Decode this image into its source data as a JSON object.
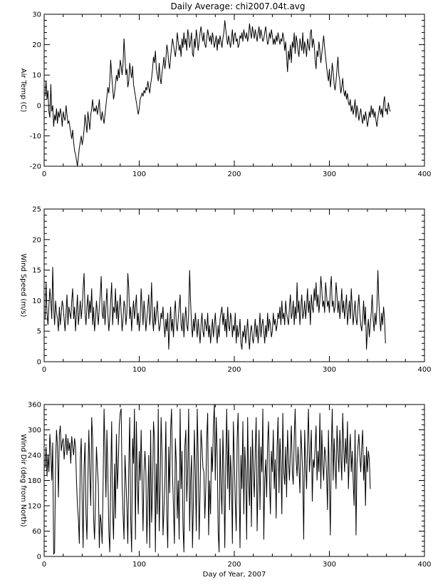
{
  "title": "Daily Average: chi2007.04t.avg",
  "chart_data": [
    {
      "type": "line",
      "name": "air-temp",
      "ylabel": "Air Temp (C)",
      "xlabel": "",
      "xlim": [
        0,
        400
      ],
      "ylim": [
        -20,
        30
      ],
      "xticks": [
        0,
        100,
        200,
        300,
        400
      ],
      "yticks": [
        -20,
        -10,
        0,
        10,
        20,
        30
      ],
      "x_start": 1,
      "y": [
        3,
        8,
        2,
        5,
        -2,
        -4,
        7,
        -2,
        0,
        -7,
        -3,
        -5,
        -1,
        -6,
        -2,
        -4,
        -1,
        -3,
        -7,
        -2,
        -4,
        -5,
        0,
        -3,
        -6,
        -5,
        -7,
        -9,
        -11,
        -8,
        -12,
        -15,
        -16,
        -18,
        -20,
        -17,
        -14,
        -12,
        -10,
        -13,
        -11,
        -8,
        -3,
        -6,
        -9,
        -2,
        -5,
        -8,
        -3,
        -1,
        2,
        -2,
        -1,
        -2,
        0,
        -3,
        -1,
        2,
        -3,
        -5,
        -2,
        -4,
        -6,
        -3,
        0,
        3,
        6,
        4,
        8,
        15,
        10,
        6,
        2,
        4,
        7,
        10,
        8,
        12,
        9,
        15,
        13,
        10,
        14,
        22,
        16,
        10,
        12,
        6,
        8,
        14,
        11,
        9,
        13,
        7,
        5,
        3,
        1,
        -1,
        -3,
        -1,
        2,
        3,
        4,
        3,
        5,
        4,
        6,
        5,
        8,
        6,
        4,
        7,
        9,
        12,
        16,
        14,
        18,
        12,
        10,
        8,
        14,
        9,
        7,
        11,
        13,
        16,
        12,
        15,
        20,
        18,
        14,
        12,
        16,
        19,
        22,
        20,
        18,
        16,
        19,
        24,
        21,
        18,
        20,
        16,
        22,
        19,
        24,
        20,
        22,
        18,
        25,
        23,
        19,
        21,
        24,
        17,
        16,
        22,
        19,
        25,
        22,
        18,
        21,
        24,
        26,
        23,
        21,
        24,
        20,
        19,
        22,
        25,
        23,
        21,
        23,
        20,
        24,
        22,
        19,
        21,
        23,
        18,
        22,
        20,
        23,
        21,
        19,
        22,
        24,
        28,
        25,
        22,
        20,
        23,
        21,
        19,
        22,
        25,
        20,
        23,
        24,
        21,
        22,
        19,
        20,
        23,
        22,
        24,
        21,
        25,
        23,
        22,
        24,
        21,
        23,
        27,
        24,
        22,
        26,
        24,
        22,
        25,
        23,
        21,
        24,
        26,
        22,
        25,
        23,
        21,
        22,
        24,
        26,
        23,
        20,
        21,
        24,
        22,
        25,
        23,
        20,
        22,
        20,
        23,
        21,
        24,
        22,
        20,
        22,
        21,
        24,
        22,
        18,
        21,
        16,
        11,
        18,
        15,
        20,
        14,
        21,
        19,
        24,
        17,
        23,
        21,
        18,
        16,
        22,
        20,
        18,
        24,
        17,
        21,
        19,
        16,
        22,
        20,
        18,
        24,
        25,
        19,
        22,
        20,
        15,
        12,
        18,
        16,
        21,
        18,
        14,
        17,
        20,
        23,
        19,
        16,
        13,
        10,
        8,
        12,
        6,
        9,
        14,
        11,
        7,
        5,
        8,
        12,
        16,
        10,
        8,
        4,
        6,
        9,
        5,
        3,
        5,
        2,
        4,
        1,
        0,
        2,
        -2,
        0,
        -3,
        -1,
        2,
        -4,
        0,
        -2,
        -5,
        -3,
        -1,
        -4,
        -6,
        -3,
        -5,
        -2,
        -4,
        -7,
        -5,
        -2,
        -4,
        0,
        -3,
        -1,
        -4,
        -2,
        -5,
        -7,
        -4,
        -2,
        0,
        -3,
        -1,
        -4,
        1,
        3,
        -2,
        -1,
        -3,
        1,
        -1,
        -2
      ],
      "color": "#000000"
    },
    {
      "type": "line",
      "name": "wind-speed",
      "ylabel": "Wind Speed (m/s)",
      "xlabel": "",
      "xlim": [
        0,
        400
      ],
      "ylim": [
        0,
        25
      ],
      "xticks": [
        0,
        100,
        200,
        300,
        400
      ],
      "yticks": [
        0,
        5,
        10,
        15,
        20,
        25
      ],
      "x_start": 1,
      "y": [
        7,
        13,
        8,
        6,
        9,
        12,
        10,
        7,
        15.5,
        9,
        6,
        10,
        8,
        7,
        5,
        9,
        6,
        8,
        10,
        9,
        7,
        5,
        8,
        11,
        6,
        9,
        8,
        7,
        10,
        12,
        7,
        9,
        5,
        8,
        11,
        6,
        8,
        10,
        7,
        9,
        12,
        14.5,
        8,
        6,
        9,
        11,
        7,
        10,
        8,
        12,
        6,
        9,
        5,
        7,
        10,
        8,
        6,
        9,
        11,
        14,
        8,
        7,
        10,
        6,
        9,
        12,
        8,
        5,
        7,
        10,
        13,
        6,
        9,
        8,
        12,
        7,
        10,
        6,
        9,
        11,
        8,
        5,
        7,
        10,
        9,
        6,
        8,
        14.5,
        12,
        7,
        9,
        5,
        8,
        10,
        7,
        9,
        11,
        6,
        8,
        5,
        7,
        12,
        9,
        6,
        10,
        8,
        5,
        7,
        9,
        11,
        6,
        8,
        13,
        7,
        5,
        9,
        6,
        8,
        10,
        7,
        5,
        6,
        8,
        7,
        9,
        6,
        4,
        7,
        5,
        8,
        2,
        6,
        9,
        5,
        7,
        4,
        8,
        10,
        6,
        5,
        7,
        9,
        11,
        6,
        5,
        8,
        4,
        7,
        9,
        6,
        5,
        8,
        15,
        10,
        6,
        4,
        7,
        5,
        8,
        6,
        4,
        7,
        5,
        3,
        6,
        8,
        5,
        4,
        7,
        6,
        5,
        8,
        4,
        6,
        3,
        5,
        7,
        4,
        6,
        8,
        5,
        3,
        6,
        4,
        7,
        8,
        9,
        6,
        8,
        5,
        7,
        4,
        9,
        6,
        5,
        8,
        7,
        4,
        6,
        5,
        8,
        3,
        6,
        4,
        5,
        7,
        3,
        2,
        5,
        4,
        6,
        3,
        5,
        7,
        4,
        2,
        5,
        6,
        4,
        3,
        5,
        7,
        4,
        6,
        3,
        5,
        8,
        4,
        6,
        7,
        5,
        3,
        6,
        4,
        8,
        5,
        7,
        6,
        4,
        5,
        8,
        6,
        7,
        5,
        6,
        8,
        7,
        9,
        6,
        10,
        7,
        8,
        6,
        10,
        8,
        7,
        6,
        9,
        11,
        7,
        8,
        10,
        6,
        9,
        7,
        13,
        8,
        10,
        6,
        9,
        11,
        7,
        8,
        10,
        7,
        9,
        12,
        8,
        10,
        6,
        11,
        9,
        8,
        12,
        10,
        13,
        9,
        11,
        8,
        10,
        14,
        12,
        9,
        10,
        8,
        13,
        11,
        9,
        10,
        8,
        12,
        14,
        9,
        10,
        8,
        9,
        13,
        11,
        8,
        10,
        7,
        9,
        12,
        8,
        10,
        7,
        9,
        11,
        6,
        8,
        10,
        7,
        12,
        9,
        6,
        8,
        10,
        7,
        6,
        9,
        11,
        8,
        6,
        5,
        7,
        10,
        6,
        9,
        2,
        5,
        7,
        4,
        6,
        8,
        11,
        7,
        5,
        8,
        6,
        9,
        15,
        10,
        7,
        5,
        8,
        6,
        9,
        7,
        3
      ],
      "color": "#000000"
    },
    {
      "type": "line",
      "name": "wind-dir",
      "ylabel": "Wind Dir (deg from North)",
      "xlabel": "Day of Year, 2007",
      "xlim": [
        0,
        400
      ],
      "ylim": [
        0,
        360
      ],
      "xticks": [
        0,
        100,
        200,
        300,
        400
      ],
      "yticks": [
        0,
        60,
        120,
        180,
        240,
        300,
        360
      ],
      "x_start": 1,
      "y": [
        210,
        260,
        190,
        240,
        200,
        290,
        250,
        180,
        270,
        5,
        10,
        220,
        300,
        260,
        140,
        290,
        310,
        250,
        270,
        280,
        230,
        260,
        290,
        240,
        280,
        250,
        270,
        220,
        285,
        260,
        240,
        280,
        260,
        180,
        120,
        90,
        30,
        230,
        280,
        130,
        20,
        210,
        270,
        100,
        40,
        180,
        300,
        200,
        120,
        330,
        280,
        90,
        40,
        130,
        260,
        210,
        170,
        20,
        100,
        80,
        30,
        170,
        350,
        250,
        140,
        300,
        200,
        60,
        10,
        180,
        320,
        110,
        40,
        220,
        90,
        290,
        160,
        220,
        310,
        340,
        350,
        170,
        100,
        40,
        240,
        180,
        120,
        30,
        210,
        330,
        90,
        10,
        280,
        220,
        350,
        40,
        320,
        180,
        100,
        250,
        180,
        300,
        180,
        60,
        200,
        250,
        200,
        30,
        130,
        240,
        20,
        300,
        80,
        150,
        320,
        280,
        10,
        220,
        100,
        350,
        60,
        160,
        330,
        240,
        50,
        110,
        180,
        320,
        100,
        20,
        260,
        150,
        300,
        350,
        190,
        120,
        30,
        280,
        220,
        90,
        180,
        40,
        350,
        160,
        250,
        70,
        10,
        260,
        300,
        130,
        210,
        350,
        60,
        180,
        240,
        20,
        130,
        300,
        200,
        60,
        350,
        240,
        40,
        150,
        300,
        260,
        210,
        200,
        90,
        160,
        280,
        340,
        50,
        180,
        100,
        260,
        200,
        310,
        360,
        180,
        330,
        240,
        60,
        10,
        280,
        170,
        100,
        300,
        190,
        20,
        220,
        350,
        160,
        300,
        110,
        240,
        180,
        30,
        320,
        230,
        130,
        60,
        280,
        340,
        180,
        20,
        240,
        160,
        320,
        100,
        260,
        200,
        40,
        330,
        180,
        120,
        260,
        70,
        300,
        200,
        140,
        250,
        330,
        60,
        180,
        300,
        110,
        260,
        200,
        350,
        40,
        180,
        230,
        140,
        270,
        320,
        180,
        100,
        250,
        200,
        300,
        160,
        230,
        90,
        260,
        330,
        150,
        280,
        220,
        100,
        340,
        200,
        170,
        260,
        140,
        300,
        230,
        180,
        250,
        310,
        200,
        170,
        280,
        350,
        230,
        190,
        260,
        210,
        150,
        300,
        250,
        190,
        40,
        300,
        220,
        160,
        270,
        350,
        200,
        240,
        300,
        130,
        230,
        210,
        260,
        310,
        180,
        250,
        200,
        340,
        160,
        300,
        220,
        180,
        260,
        240,
        200,
        110,
        300,
        180,
        50,
        250,
        350,
        180,
        280,
        220,
        160,
        310,
        250,
        200,
        300,
        240,
        180,
        340,
        260,
        200,
        280,
        220,
        320,
        160,
        240,
        290,
        200,
        250,
        180,
        120,
        300,
        50,
        220,
        260,
        290,
        240,
        200,
        260,
        300,
        180,
        240,
        120,
        260,
        200,
        250,
        230,
        160
      ],
      "color": "#000000"
    }
  ]
}
